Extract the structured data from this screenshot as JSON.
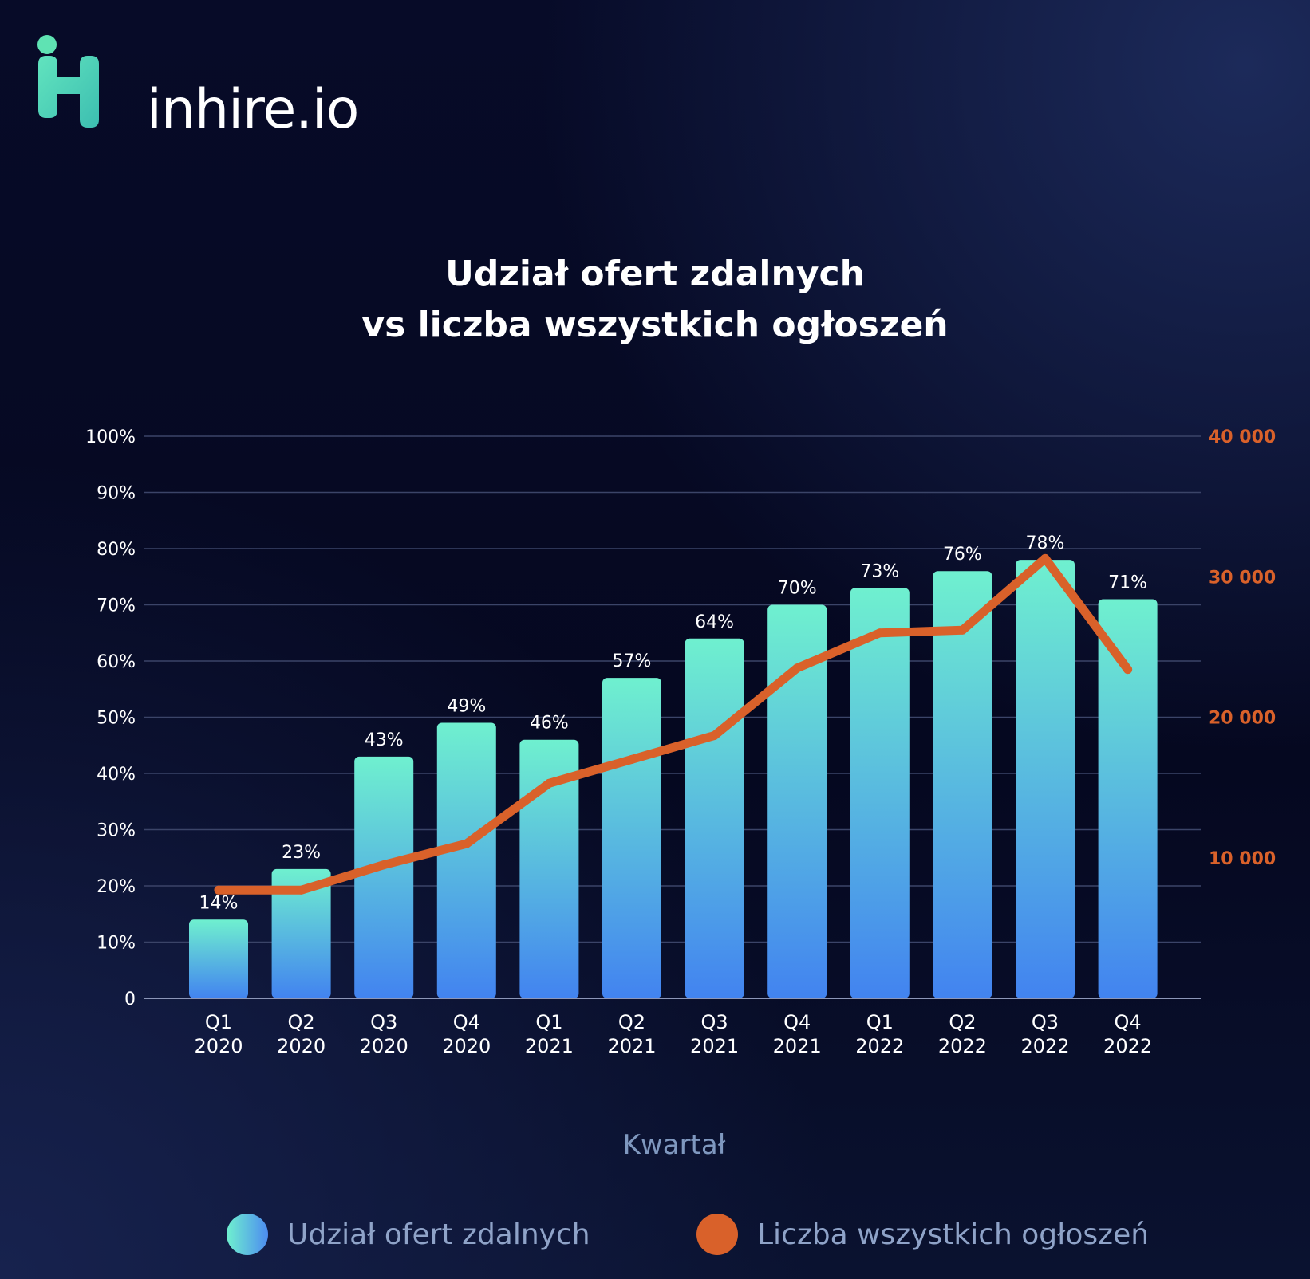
{
  "brand": {
    "name": "inhire.io",
    "primary_color": "#5ee6c4",
    "secondary_color": "#4d8cf0"
  },
  "chart_data": {
    "type": "bar",
    "title_lines": [
      "Udział ofert zdalnych",
      "vs liczba wszystkich ogłoszeń"
    ],
    "xlabel": "Kwartał",
    "categories": [
      [
        "Q1",
        "2020"
      ],
      [
        "Q2",
        "2020"
      ],
      [
        "Q3",
        "2020"
      ],
      [
        "Q4",
        "2020"
      ],
      [
        "Q1",
        "2021"
      ],
      [
        "Q2",
        "2021"
      ],
      [
        "Q3",
        "2021"
      ],
      [
        "Q4",
        "2021"
      ],
      [
        "Q1",
        "2022"
      ],
      [
        "Q2",
        "2022"
      ],
      [
        "Q3",
        "2022"
      ],
      [
        "Q4",
        "2022"
      ]
    ],
    "series": [
      {
        "name": "Udział ofert zdalnych",
        "type": "bar",
        "axis": "left",
        "values": [
          14,
          23,
          43,
          49,
          46,
          57,
          64,
          70,
          73,
          76,
          78,
          71
        ],
        "value_labels": [
          "14%",
          "23%",
          "43%",
          "49%",
          "46%",
          "57%",
          "64%",
          "70%",
          "73%",
          "76%",
          "78%",
          "71%"
        ],
        "color_top": "#6ff0cf",
        "color_bottom": "#4283f0"
      },
      {
        "name": "Liczba wszystkich ogłoszeń",
        "type": "line",
        "axis": "right",
        "values": [
          7700,
          7700,
          9500,
          11000,
          15300,
          17000,
          18700,
          23500,
          26000,
          26200,
          31300,
          23400
        ],
        "color": "#d9612a"
      }
    ],
    "y_left": {
      "range": [
        0,
        100
      ],
      "ticks": [
        0,
        10,
        20,
        30,
        40,
        50,
        60,
        70,
        80,
        90,
        100
      ],
      "tick_labels": [
        "0",
        "10%",
        "20%",
        "30%",
        "40%",
        "50%",
        "60%",
        "70%",
        "80%",
        "90%",
        "100%"
      ]
    },
    "y_right": {
      "range": [
        0,
        40000
      ],
      "ticks": [
        10000,
        20000,
        30000,
        40000
      ],
      "tick_labels": [
        "10 000",
        "20 000",
        "30 000",
        "40 000"
      ],
      "color": "#d9612a"
    },
    "grid": true,
    "legend_position": "bottom"
  }
}
